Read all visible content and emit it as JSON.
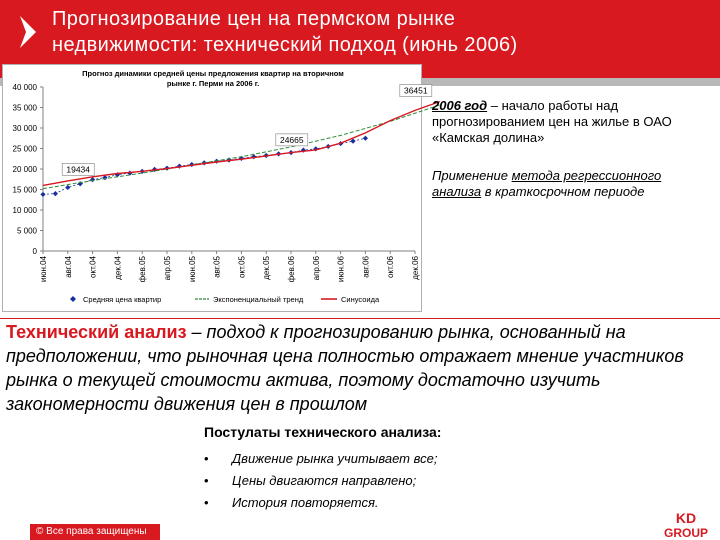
{
  "slide": {
    "title_line1": "Прогнозирование цен на пермском рынке",
    "title_line2": "недвижимости: технический подход (июнь 2006)",
    "note_year": "2006 год",
    "note1_rest": " – начало работы над прогнозированием цен на жилье в ОАО «Камская долина»",
    "note2_a": "Применение ",
    "note2_link": "метода регрессионного анализа",
    "note2_b": " в краткосрочном периоде",
    "definition_term": "Технический анализ",
    "definition_rest": " – подход к прогнозированию рынка, основанный на предположении, что рыночная цена полностью отражает мнение участников рынка о текущей стоимости актива, поэтому достаточно изучить закономерности движения цен в прошлом",
    "postulates_title": "Постулаты технического анализа:",
    "postulates": [
      "Движение рынка учитывает все;",
      "Цены двигаются направлено;",
      "История повторяется."
    ],
    "bullet": "•",
    "copyright": "© Все права защищены",
    "logo_text_top": "KD",
    "logo_text_bottom": "GROUP"
  },
  "chart_data": {
    "type": "line",
    "title_line1": "Прогноз динамики средней цены предложения квартир на вторичном",
    "title_line2": "рынке г. Перми на 2006 г.",
    "categories": [
      "июн.04",
      "авг.04",
      "окт.04",
      "дек.04",
      "фев.05",
      "апр.05",
      "июн.05",
      "авг.05",
      "окт.05",
      "дек.05",
      "фев.06",
      "апр.06",
      "июн.06",
      "авг.06",
      "окт.06",
      "дек.06"
    ],
    "ylim": [
      0,
      40000
    ],
    "yticks": [
      "40 000",
      "35 000",
      "30 000",
      "25 000",
      "20 000",
      "15 000",
      "10 000",
      "5 000",
      "0"
    ],
    "series": [
      {
        "name": "Средняя цена квартир",
        "color": "#1a2f9e",
        "points": [
          [
            0,
            13800
          ],
          [
            0.5,
            14000
          ],
          [
            1,
            15500
          ],
          [
            1.5,
            16400
          ],
          [
            2,
            17400
          ],
          [
            2.5,
            17900
          ],
          [
            3,
            18600
          ],
          [
            3.5,
            19000
          ],
          [
            4,
            19434
          ],
          [
            4.5,
            19900
          ],
          [
            5,
            20200
          ],
          [
            5.5,
            20700
          ],
          [
            6,
            21100
          ],
          [
            6.5,
            21500
          ],
          [
            7,
            21900
          ],
          [
            7.5,
            22200
          ],
          [
            8,
            22600
          ],
          [
            8.5,
            23000
          ],
          [
            9,
            23300
          ],
          [
            9.5,
            23700
          ],
          [
            10,
            24000
          ],
          [
            10.5,
            24600
          ],
          [
            11,
            24900
          ],
          [
            11.5,
            25500
          ],
          [
            12,
            26200
          ],
          [
            12.5,
            26800
          ],
          [
            13,
            27500
          ]
        ]
      },
      {
        "name": "Экспоненциальный тренд",
        "color": "#2e8b3a",
        "points": [
          [
            0,
            15200
          ],
          [
            2,
            17200
          ],
          [
            4,
            19000
          ],
          [
            6,
            21000
          ],
          [
            8,
            23000
          ],
          [
            10,
            25400
          ],
          [
            12,
            28200
          ],
          [
            14,
            31600
          ],
          [
            16,
            35600
          ]
        ]
      },
      {
        "name": "Синусоида",
        "color": "#d81920",
        "points": [
          [
            0,
            16000
          ],
          [
            1,
            17100
          ],
          [
            2,
            18100
          ],
          [
            3,
            18900
          ],
          [
            4,
            19434
          ],
          [
            5,
            20100
          ],
          [
            6,
            20900
          ],
          [
            7,
            21700
          ],
          [
            8,
            22400
          ],
          [
            9,
            23200
          ],
          [
            10,
            24000
          ],
          [
            11,
            24665
          ],
          [
            12,
            26300
          ],
          [
            13,
            28800
          ],
          [
            14,
            31800
          ],
          [
            15,
            34300
          ],
          [
            16,
            36451
          ]
        ]
      }
    ],
    "annotations": [
      "36451",
      "24665",
      "19434"
    ],
    "legend_position": "bottom",
    "grid": false
  }
}
